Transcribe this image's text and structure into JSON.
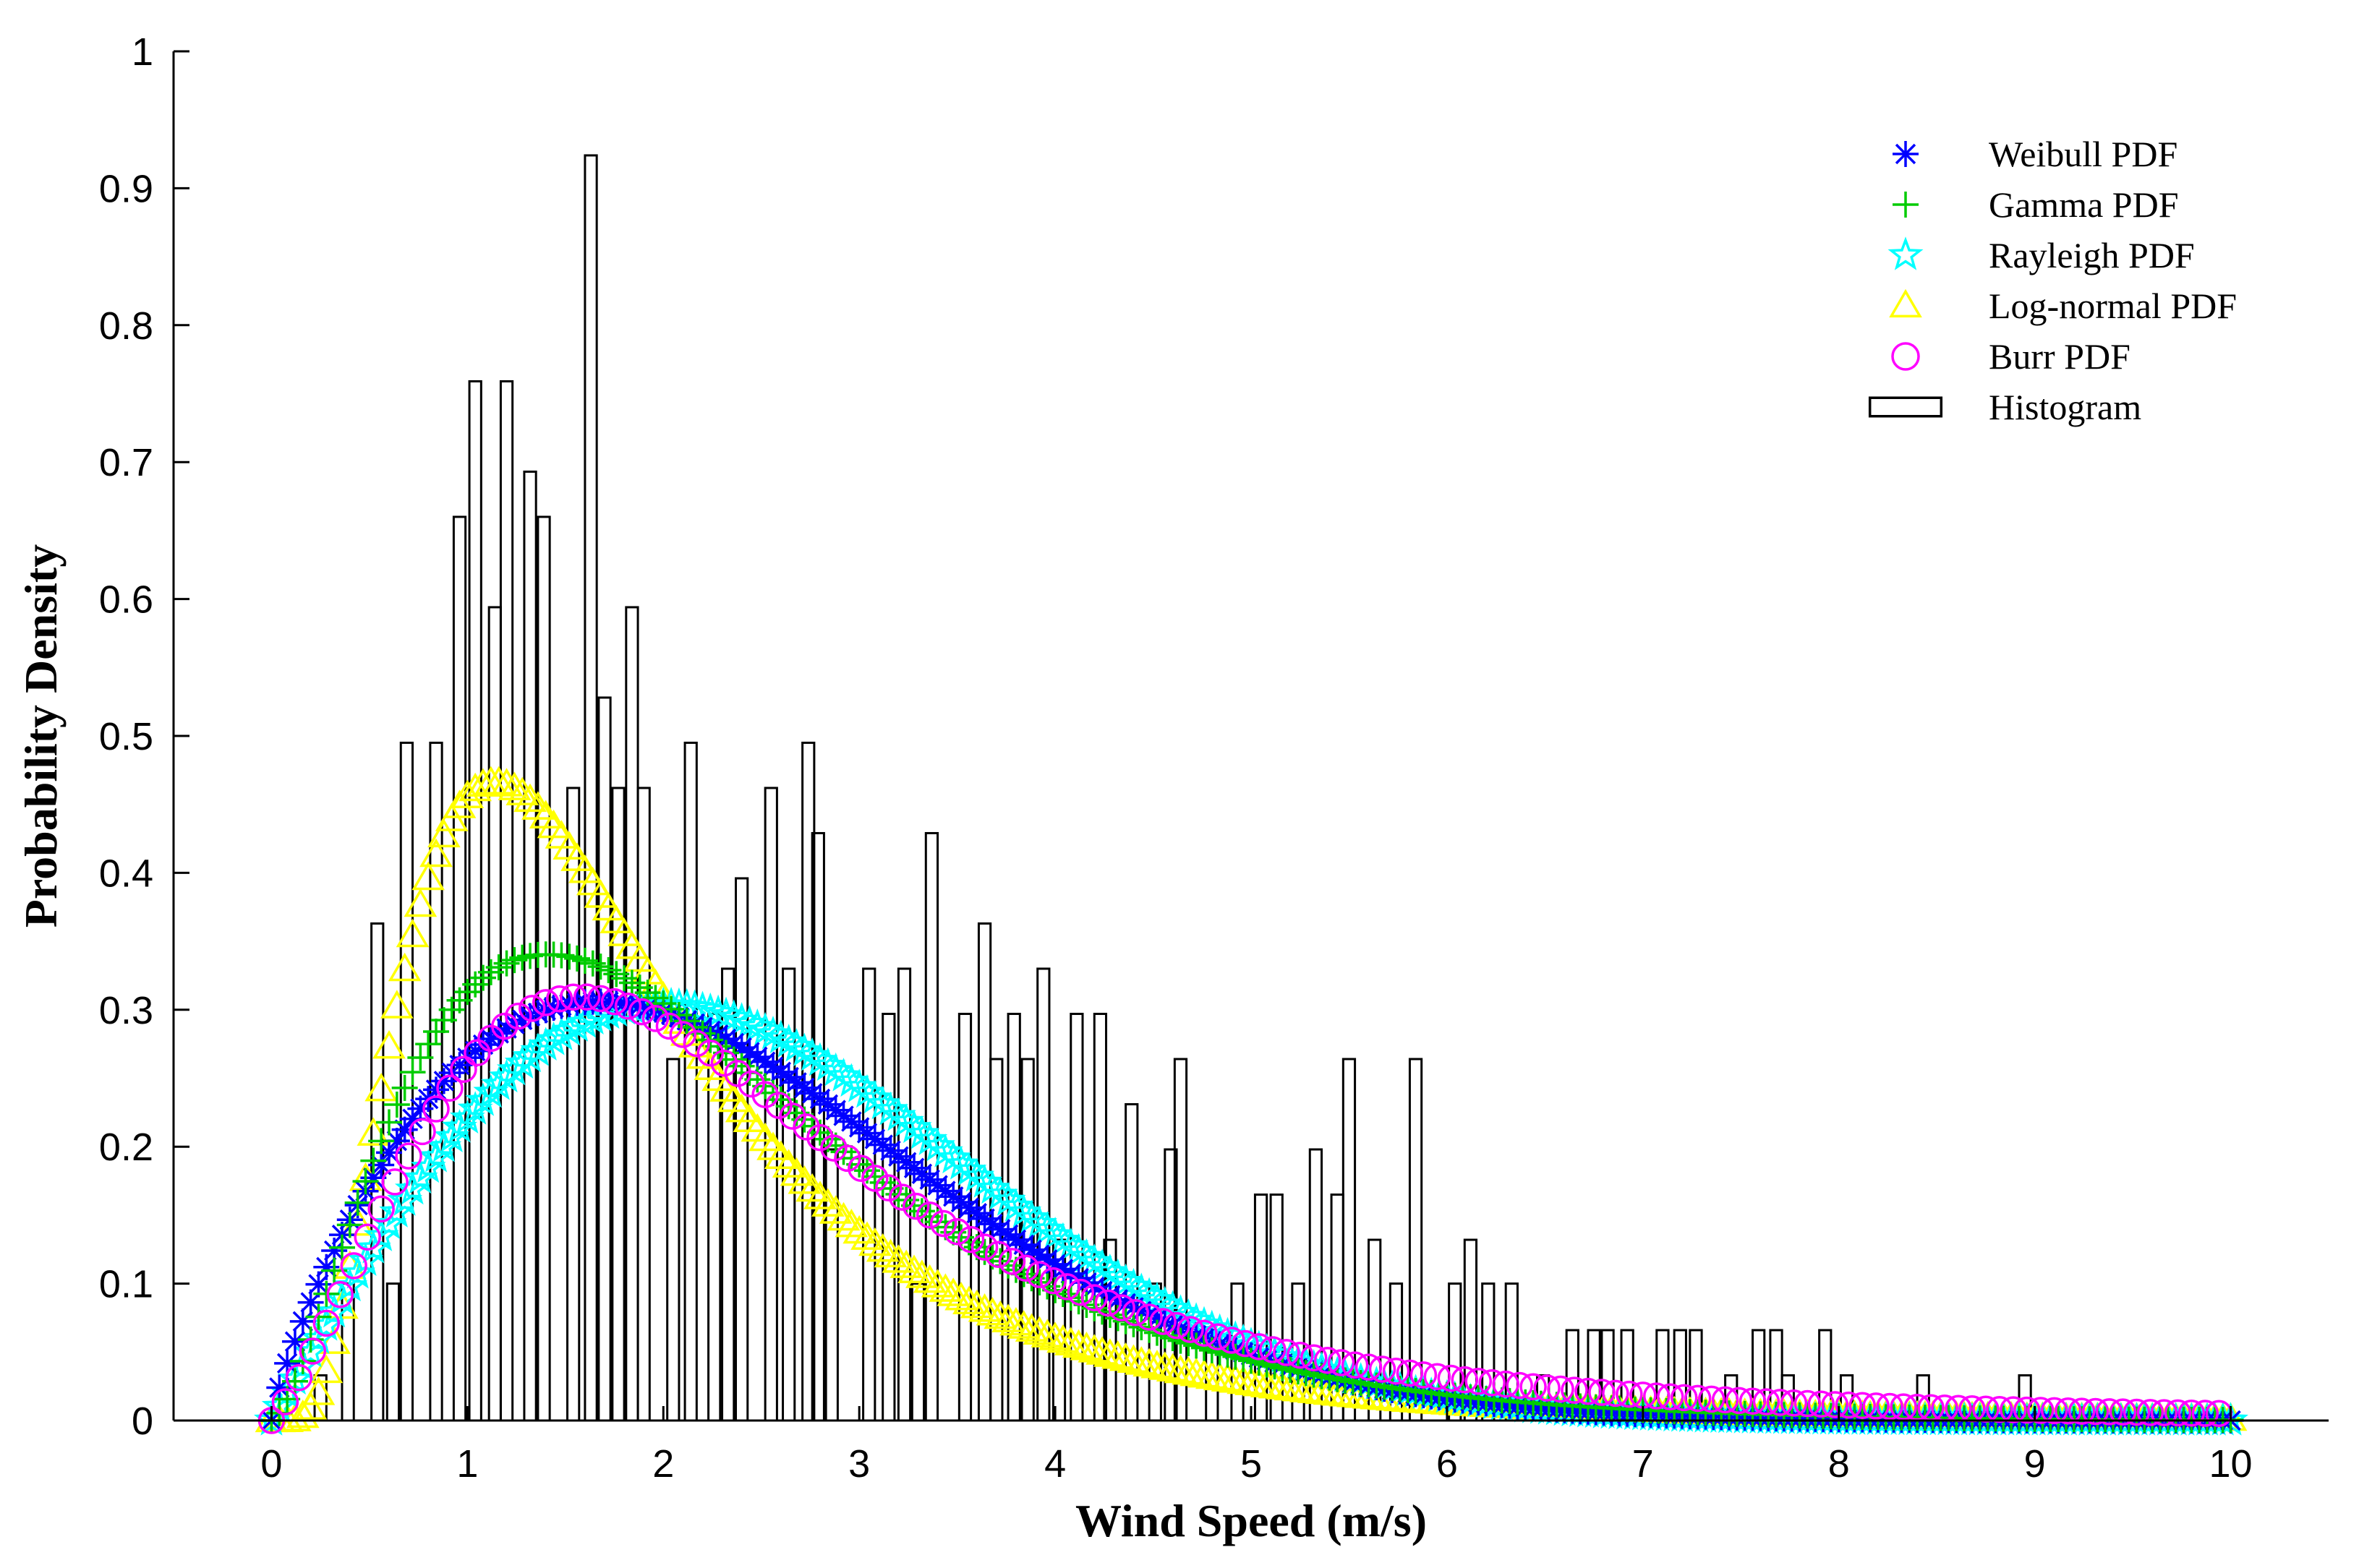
{
  "chart_data": {
    "type": "bar",
    "title": "",
    "xlabel": "Wind Speed (m/s)",
    "ylabel": "Probability Density",
    "xlim": [
      -0.5,
      10.5
    ],
    "ylim": [
      0,
      1
    ],
    "xticks": [
      "0",
      "1",
      "2",
      "3",
      "4",
      "5",
      "6",
      "7",
      "8",
      "9",
      "10"
    ],
    "yticks": [
      "0",
      "0.1",
      "0.2",
      "0.3",
      "0.4",
      "0.5",
      "0.6",
      "0.7",
      "0.8",
      "0.9",
      "1"
    ],
    "grid": false,
    "legend_position": "top-right",
    "histogram": {
      "name": "Histogram",
      "bin_width": 0.06,
      "bars": [
        {
          "x": 0.25,
          "y": 0.033
        },
        {
          "x": 0.39,
          "y": 0.1
        },
        {
          "x": 0.54,
          "y": 0.363
        },
        {
          "x": 0.62,
          "y": 0.1
        },
        {
          "x": 0.69,
          "y": 0.495
        },
        {
          "x": 0.84,
          "y": 0.495
        },
        {
          "x": 0.96,
          "y": 0.66
        },
        {
          "x": 1.04,
          "y": 0.759
        },
        {
          "x": 1.14,
          "y": 0.594
        },
        {
          "x": 1.2,
          "y": 0.759
        },
        {
          "x": 1.32,
          "y": 0.693
        },
        {
          "x": 1.39,
          "y": 0.66
        },
        {
          "x": 1.54,
          "y": 0.462
        },
        {
          "x": 1.63,
          "y": 0.924
        },
        {
          "x": 1.7,
          "y": 0.528
        },
        {
          "x": 1.77,
          "y": 0.462
        },
        {
          "x": 1.84,
          "y": 0.594
        },
        {
          "x": 1.9,
          "y": 0.462
        },
        {
          "x": 2.05,
          "y": 0.264
        },
        {
          "x": 2.14,
          "y": 0.495
        },
        {
          "x": 2.26,
          "y": 0.297
        },
        {
          "x": 2.33,
          "y": 0.33
        },
        {
          "x": 2.4,
          "y": 0.396
        },
        {
          "x": 2.55,
          "y": 0.462
        },
        {
          "x": 2.64,
          "y": 0.33
        },
        {
          "x": 2.74,
          "y": 0.495
        },
        {
          "x": 2.79,
          "y": 0.429
        },
        {
          "x": 2.86,
          "y": 0.198
        },
        {
          "x": 3.05,
          "y": 0.33
        },
        {
          "x": 3.15,
          "y": 0.297
        },
        {
          "x": 3.23,
          "y": 0.33
        },
        {
          "x": 3.3,
          "y": 0.1
        },
        {
          "x": 3.37,
          "y": 0.429
        },
        {
          "x": 3.54,
          "y": 0.297
        },
        {
          "x": 3.64,
          "y": 0.363
        },
        {
          "x": 3.7,
          "y": 0.264
        },
        {
          "x": 3.79,
          "y": 0.297
        },
        {
          "x": 3.86,
          "y": 0.264
        },
        {
          "x": 3.94,
          "y": 0.33
        },
        {
          "x": 4.02,
          "y": 0.132
        },
        {
          "x": 4.11,
          "y": 0.297
        },
        {
          "x": 4.23,
          "y": 0.297
        },
        {
          "x": 4.28,
          "y": 0.132
        },
        {
          "x": 4.39,
          "y": 0.231
        },
        {
          "x": 4.51,
          "y": 0.1
        },
        {
          "x": 4.59,
          "y": 0.198
        },
        {
          "x": 4.64,
          "y": 0.264
        },
        {
          "x": 4.8,
          "y": 0.066
        },
        {
          "x": 4.93,
          "y": 0.1
        },
        {
          "x": 5.05,
          "y": 0.165
        },
        {
          "x": 5.13,
          "y": 0.165
        },
        {
          "x": 5.24,
          "y": 0.1
        },
        {
          "x": 5.33,
          "y": 0.198
        },
        {
          "x": 5.44,
          "y": 0.165
        },
        {
          "x": 5.5,
          "y": 0.264
        },
        {
          "x": 5.63,
          "y": 0.132
        },
        {
          "x": 5.74,
          "y": 0.1
        },
        {
          "x": 5.84,
          "y": 0.264
        },
        {
          "x": 6.04,
          "y": 0.1
        },
        {
          "x": 6.12,
          "y": 0.132
        },
        {
          "x": 6.21,
          "y": 0.1
        },
        {
          "x": 6.33,
          "y": 0.1
        },
        {
          "x": 6.49,
          "y": 0.033
        },
        {
          "x": 6.64,
          "y": 0.066
        },
        {
          "x": 6.75,
          "y": 0.066
        },
        {
          "x": 6.82,
          "y": 0.066
        },
        {
          "x": 6.92,
          "y": 0.066
        },
        {
          "x": 7.1,
          "y": 0.066
        },
        {
          "x": 7.19,
          "y": 0.066
        },
        {
          "x": 7.27,
          "y": 0.066
        },
        {
          "x": 7.45,
          "y": 0.033
        },
        {
          "x": 7.59,
          "y": 0.066
        },
        {
          "x": 7.68,
          "y": 0.066
        },
        {
          "x": 7.74,
          "y": 0.033
        },
        {
          "x": 7.93,
          "y": 0.066
        },
        {
          "x": 8.04,
          "y": 0.033
        },
        {
          "x": 8.43,
          "y": 0.033
        },
        {
          "x": 8.95,
          "y": 0.033
        }
      ]
    },
    "series": [
      {
        "name": "Log-normal PDF",
        "color": "#ffff00",
        "marker": "triangle",
        "step": 0.04,
        "dist": "lognormal",
        "params": {
          "mu": 0.515,
          "sigma": 0.62
        }
      },
      {
        "name": "Rayleigh PDF",
        "color": "#00ffff",
        "marker": "star",
        "step": 0.04,
        "dist": "rayleigh",
        "params": {
          "sigma": 2.0
        }
      },
      {
        "name": "Weibull PDF",
        "color": "#0000ff",
        "marker": "asterisk",
        "step": 0.04,
        "dist": "weibull",
        "params": {
          "k": 1.8,
          "lambda": 2.63
        }
      },
      {
        "name": "Gamma PDF",
        "color": "#00cc00",
        "marker": "plus",
        "step": 0.04,
        "dist": "gamma",
        "params": {
          "k": 2.6,
          "theta": 0.88
        }
      },
      {
        "name": "Burr PDF",
        "color": "#ff00ff",
        "marker": "circle",
        "step": 0.07,
        "dist": "burr",
        "params": {
          "c": 2.2,
          "k": 1.4,
          "lambda": 2.75
        }
      }
    ],
    "legend": [
      {
        "label": "Weibull PDF",
        "color": "#0000ff",
        "marker": "asterisk"
      },
      {
        "label": "Gamma PDF",
        "color": "#00cc00",
        "marker": "plus"
      },
      {
        "label": "Rayleigh PDF",
        "color": "#00ffff",
        "marker": "star"
      },
      {
        "label": "Log-normal PDF",
        "color": "#ffff00",
        "marker": "triangle"
      },
      {
        "label": "Burr PDF",
        "color": "#ff00ff",
        "marker": "circle"
      },
      {
        "label": "Histogram",
        "color": "#000000",
        "marker": "rect"
      }
    ]
  }
}
